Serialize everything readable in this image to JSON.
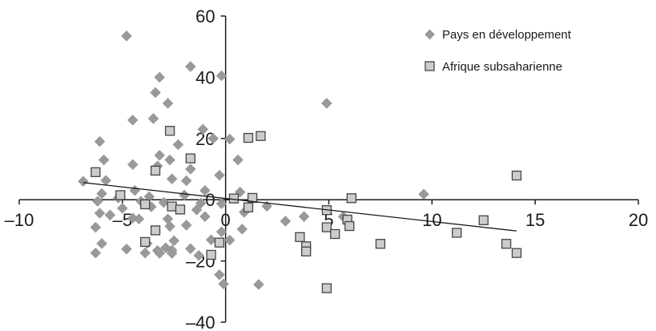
{
  "chart_data": {
    "type": "scatter",
    "title": "",
    "xlabel": "",
    "ylabel": "",
    "xlim": [
      -10,
      20
    ],
    "ylim": [
      -40,
      60
    ],
    "x_ticks": [
      -10,
      -5,
      0,
      5,
      10,
      15,
      20
    ],
    "y_ticks": [
      -40,
      -20,
      0,
      20,
      40,
      60
    ],
    "x_tick_labels": [
      "–10",
      "–5",
      "0",
      "5",
      "10",
      "15",
      "20"
    ],
    "y_tick_labels": [
      "–40",
      "–20",
      "0",
      "20",
      "40",
      "60"
    ],
    "grid": false,
    "legend_position": "top-right",
    "series": [
      {
        "name": "Pays en développement",
        "marker": "diamond",
        "color": "#999999",
        "points": [
          [
            -4.8,
            53.5
          ],
          [
            -1.7,
            43.5
          ],
          [
            -0.2,
            40.5
          ],
          [
            -3.2,
            40
          ],
          [
            -3.4,
            35
          ],
          [
            -2.8,
            31.5
          ],
          [
            -4.5,
            26
          ],
          [
            -3.5,
            26.5
          ],
          [
            -1.1,
            23
          ],
          [
            -6.1,
            19
          ],
          [
            -2.3,
            18
          ],
          [
            -3.2,
            14.5
          ],
          [
            -1.7,
            10
          ],
          [
            -4.5,
            11.5
          ],
          [
            -5.9,
            13
          ],
          [
            -3.3,
            11
          ],
          [
            -2.7,
            13
          ],
          [
            0.6,
            13
          ],
          [
            0.2,
            19.8
          ],
          [
            -0.6,
            20
          ],
          [
            -0.3,
            8
          ],
          [
            -6.9,
            6
          ],
          [
            -5.8,
            6.3
          ],
          [
            -2.6,
            6.8
          ],
          [
            -1.9,
            6.2
          ],
          [
            -4.4,
            3
          ],
          [
            -1.0,
            3
          ],
          [
            -2.0,
            1.5
          ],
          [
            0.7,
            2.5
          ],
          [
            -6.0,
            2
          ],
          [
            -3.7,
            1
          ],
          [
            -5.2,
            0.6
          ],
          [
            -4.1,
            -0.5
          ],
          [
            -6.2,
            -0.5
          ],
          [
            -3.0,
            -0.9
          ],
          [
            -1.2,
            -1.1
          ],
          [
            -0.2,
            -1.3
          ],
          [
            -5.0,
            -2.8
          ],
          [
            -3.6,
            -2.3
          ],
          [
            -1.4,
            -3.3
          ],
          [
            -6.1,
            -4.4
          ],
          [
            -5.6,
            -5.0
          ],
          [
            -4.5,
            -6.0
          ],
          [
            -4.2,
            -6.3
          ],
          [
            -2.8,
            -6.3
          ],
          [
            -1.0,
            -5.5
          ],
          [
            0.9,
            -4.1
          ],
          [
            -6.3,
            -9.0
          ],
          [
            -2.7,
            -8.7
          ],
          [
            -1.9,
            -8.3
          ],
          [
            0.8,
            -9.6
          ],
          [
            -0.2,
            -10.5
          ],
          [
            -6.0,
            -14.3
          ],
          [
            -3.8,
            -14.3
          ],
          [
            -2.5,
            -13.4
          ],
          [
            -0.7,
            -13.1
          ],
          [
            0.2,
            -13.2
          ],
          [
            -2.9,
            -15.7
          ],
          [
            -3.3,
            -16.6
          ],
          [
            -2.6,
            -16.5
          ],
          [
            -1.7,
            -16.0
          ],
          [
            -4.8,
            -16.1
          ],
          [
            -6.3,
            -17.4
          ],
          [
            -3.9,
            -17.4
          ],
          [
            -3.2,
            -17.5
          ],
          [
            -2.6,
            -17.5
          ],
          [
            -1.3,
            -18.2
          ],
          [
            -0.3,
            -24.5
          ],
          [
            -0.1,
            -27.5
          ],
          [
            1.6,
            -27.7
          ],
          [
            2.0,
            -2.1
          ],
          [
            2.9,
            -7.0
          ],
          [
            3.8,
            -5.5
          ],
          [
            4.9,
            31.5
          ],
          [
            5.7,
            -5.5
          ],
          [
            9.6,
            1.8
          ]
        ]
      },
      {
        "name": "Afrique subsaharienne",
        "marker": "square",
        "color": "#cccccc",
        "points": [
          [
            -6.3,
            9
          ],
          [
            -5.1,
            1.5
          ],
          [
            -3.4,
            9.5
          ],
          [
            -2.7,
            22.5
          ],
          [
            -1.7,
            13.5
          ],
          [
            1.1,
            20.2
          ],
          [
            1.7,
            20.8
          ],
          [
            0.4,
            0.4
          ],
          [
            1.3,
            0.6
          ],
          [
            1.1,
            -2.5
          ],
          [
            -3.9,
            -1.5
          ],
          [
            -3.4,
            -10
          ],
          [
            -3.9,
            -13.8
          ],
          [
            -2.6,
            -2.2
          ],
          [
            -2.2,
            -3.2
          ],
          [
            -0.3,
            -14
          ],
          [
            -0.7,
            -18
          ],
          [
            3.6,
            -12.2
          ],
          [
            3.9,
            -15.2
          ],
          [
            3.9,
            -16.9
          ],
          [
            4.9,
            -3.4
          ],
          [
            4.9,
            -9
          ],
          [
            5.3,
            -11.2
          ],
          [
            5.9,
            -6.5
          ],
          [
            6.0,
            -8.6
          ],
          [
            6.1,
            0.5
          ],
          [
            7.5,
            -14.4
          ],
          [
            11.2,
            -10.8
          ],
          [
            12.5,
            -6.7
          ],
          [
            13.6,
            -14.4
          ],
          [
            14.1,
            -17.4
          ],
          [
            14.1,
            7.9
          ],
          [
            4.9,
            -28.9
          ]
        ]
      }
    ],
    "trendline": {
      "x": [
        -6.9,
        14.1
      ],
      "y": [
        5.6,
        -10.2
      ]
    }
  }
}
